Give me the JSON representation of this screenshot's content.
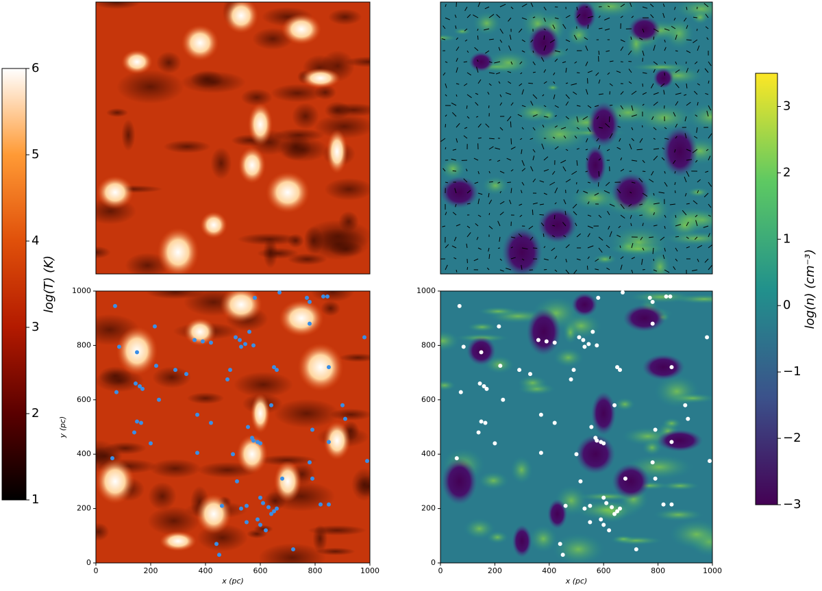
{
  "chart_data": [
    {
      "type": "colorbar",
      "label": "log(T) (K)",
      "colormap": "gist_heat",
      "ylim": [
        1,
        6
      ],
      "yticks": [
        1,
        2,
        3,
        4,
        5,
        6
      ]
    },
    {
      "type": "colorbar",
      "label": "log(n) (cm⁻³)",
      "colormap": "viridis",
      "ylim": [
        -3,
        3.5
      ],
      "yticks": [
        {
          "value": -3,
          "label": "−3"
        },
        {
          "value": -2,
          "label": "−2"
        },
        {
          "value": -1,
          "label": "−1"
        },
        0,
        1,
        2,
        3
      ]
    },
    {
      "type": "scatter",
      "x_label": "x (pc)",
      "y_label": "y (pc)",
      "background": "temperature",
      "color": "#3a8ee6",
      "xlim": [
        0,
        1000
      ],
      "ylim": [
        0,
        1000
      ],
      "xticks": [
        0,
        200,
        400,
        600,
        800,
        1000
      ],
      "yticks": [
        0,
        200,
        400,
        600,
        800,
        1000
      ],
      "x": [
        70,
        85,
        150,
        215,
        220,
        290,
        330,
        145,
        160,
        170,
        75,
        230,
        150,
        165,
        140,
        200,
        360,
        390,
        420,
        370,
        420,
        370,
        60,
        510,
        525,
        545,
        530,
        560,
        575,
        490,
        480,
        555,
        570,
        575,
        590,
        600,
        500,
        515,
        640,
        650,
        660,
        580,
        670,
        770,
        780,
        830,
        845,
        780,
        850,
        980,
        900,
        910,
        790,
        780,
        850,
        790,
        680,
        460,
        530,
        550,
        600,
        610,
        630,
        650,
        660,
        640,
        550,
        590,
        600,
        620,
        440,
        450,
        720,
        820,
        850,
        990
      ],
      "y": [
        945,
        795,
        775,
        870,
        725,
        710,
        695,
        660,
        650,
        640,
        628,
        600,
        520,
        515,
        480,
        440,
        820,
        815,
        810,
        545,
        515,
        405,
        385,
        830,
        820,
        805,
        795,
        850,
        800,
        710,
        675,
        500,
        460,
        450,
        445,
        440,
        400,
        300,
        580,
        720,
        710,
        975,
        995,
        975,
        960,
        980,
        980,
        880,
        720,
        830,
        580,
        530,
        490,
        370,
        445,
        310,
        310,
        210,
        200,
        210,
        240,
        220,
        205,
        190,
        200,
        180,
        150,
        160,
        140,
        120,
        70,
        30,
        50,
        215,
        215,
        375
      ]
    },
    {
      "type": "scatter",
      "x_label": "x (pc)",
      "background": "density",
      "color": "#ffffff",
      "xlim": [
        0,
        1000
      ],
      "ylim": [
        0,
        1000
      ],
      "xticks": [
        0,
        200,
        400,
        600,
        800,
        1000
      ],
      "yticks": [
        0,
        200,
        400,
        600,
        800,
        1000
      ],
      "x": [
        70,
        85,
        150,
        215,
        220,
        290,
        330,
        145,
        160,
        170,
        75,
        230,
        150,
        165,
        140,
        200,
        360,
        390,
        420,
        370,
        420,
        370,
        60,
        510,
        525,
        545,
        530,
        560,
        575,
        490,
        480,
        555,
        570,
        575,
        590,
        600,
        500,
        515,
        640,
        650,
        660,
        580,
        670,
        770,
        780,
        830,
        845,
        780,
        850,
        980,
        900,
        910,
        790,
        780,
        850,
        790,
        680,
        460,
        530,
        550,
        600,
        610,
        630,
        650,
        660,
        640,
        550,
        590,
        600,
        620,
        440,
        450,
        720,
        820,
        850,
        990
      ],
      "y": [
        945,
        795,
        775,
        870,
        725,
        710,
        695,
        660,
        650,
        640,
        628,
        600,
        520,
        515,
        480,
        440,
        820,
        815,
        810,
        545,
        515,
        405,
        385,
        830,
        820,
        805,
        795,
        850,
        800,
        710,
        675,
        500,
        460,
        450,
        445,
        440,
        400,
        300,
        580,
        720,
        710,
        975,
        995,
        975,
        960,
        980,
        980,
        880,
        720,
        830,
        580,
        530,
        490,
        370,
        445,
        310,
        310,
        210,
        200,
        210,
        240,
        220,
        205,
        190,
        200,
        180,
        150,
        160,
        140,
        120,
        70,
        30,
        50,
        215,
        215,
        375
      ]
    }
  ]
}
